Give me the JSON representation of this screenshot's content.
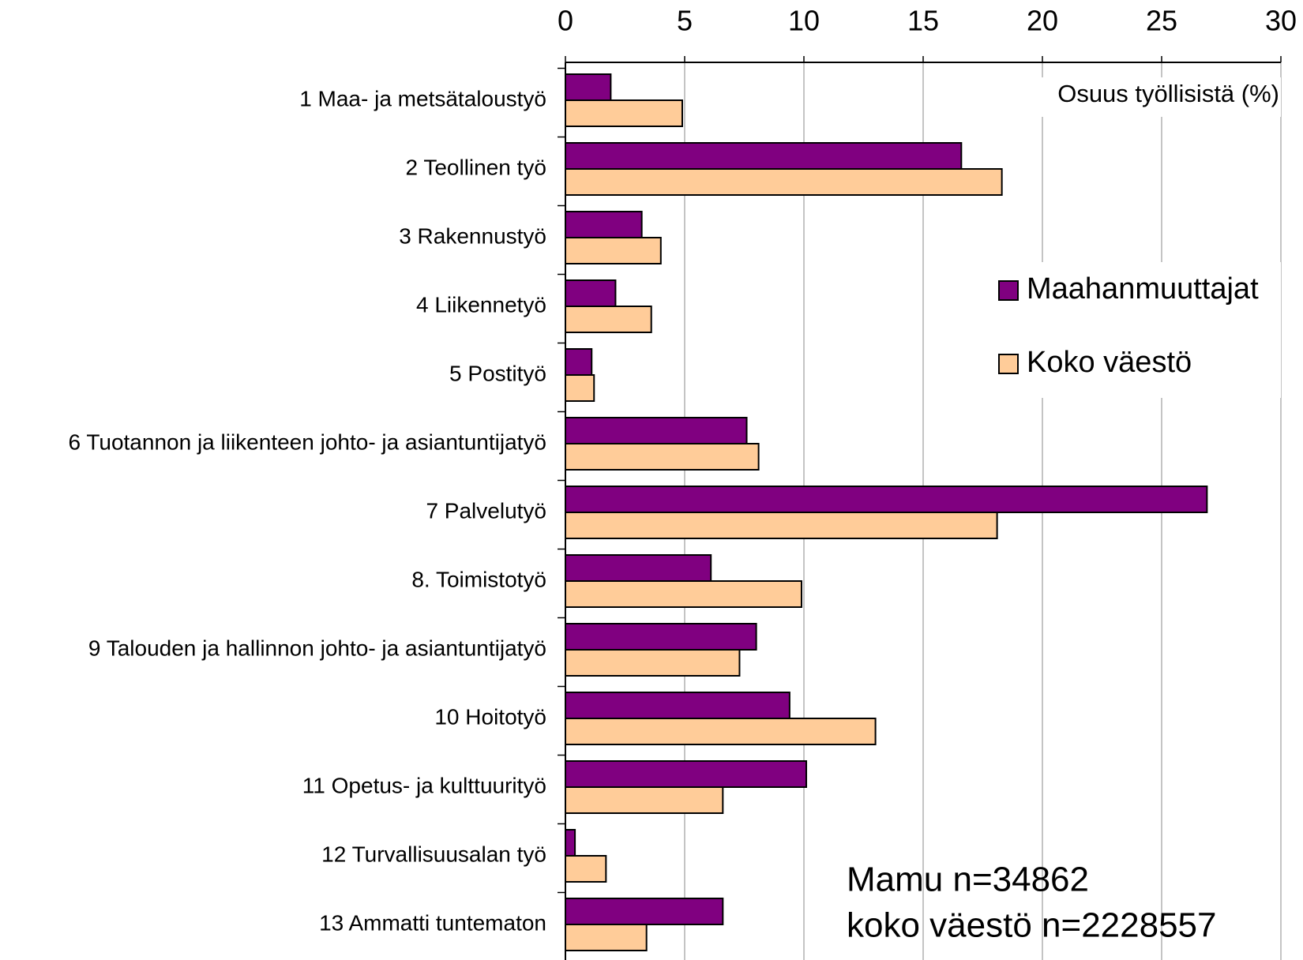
{
  "chart_data": {
    "type": "hbar",
    "x_label": "Osuus työllisistä (%)",
    "categories": [
      "1 Maa- ja metsätaloustyö",
      "2 Teollinen työ",
      "3 Rakennustyö",
      "4 Liikennetyö",
      "5 Postityö",
      "6 Tuotannon ja liikenteen johto- ja asiantuntijatyö",
      "7 Palvelutyö",
      "8. Toimistotyö",
      "9 Talouden ja hallinnon johto- ja asiantuntijatyö",
      "10 Hoitotyö",
      "11 Opetus- ja kulttuurityö",
      "12 Turvallisuusalan työ",
      "13 Ammatti tuntematon"
    ],
    "series": [
      {
        "name": "Maahanmuuttajat",
        "color": "#800080",
        "values": [
          1.9,
          16.6,
          3.2,
          2.1,
          1.1,
          7.6,
          26.9,
          6.1,
          8.0,
          9.4,
          10.1,
          0.4,
          6.6
        ]
      },
      {
        "name": "Koko väestö",
        "color": "#ffcc99",
        "values": [
          4.9,
          18.3,
          4.0,
          3.6,
          1.2,
          8.1,
          18.1,
          9.9,
          7.3,
          13.0,
          6.6,
          1.7,
          3.4
        ]
      }
    ],
    "xlim": [
      0,
      30
    ],
    "xticks": [
      0,
      5,
      10,
      15,
      20,
      25,
      30
    ],
    "grid": true,
    "legend": "right",
    "annotations": [
      "Mamu n=34862",
      "koko väestö n=2228557"
    ]
  }
}
